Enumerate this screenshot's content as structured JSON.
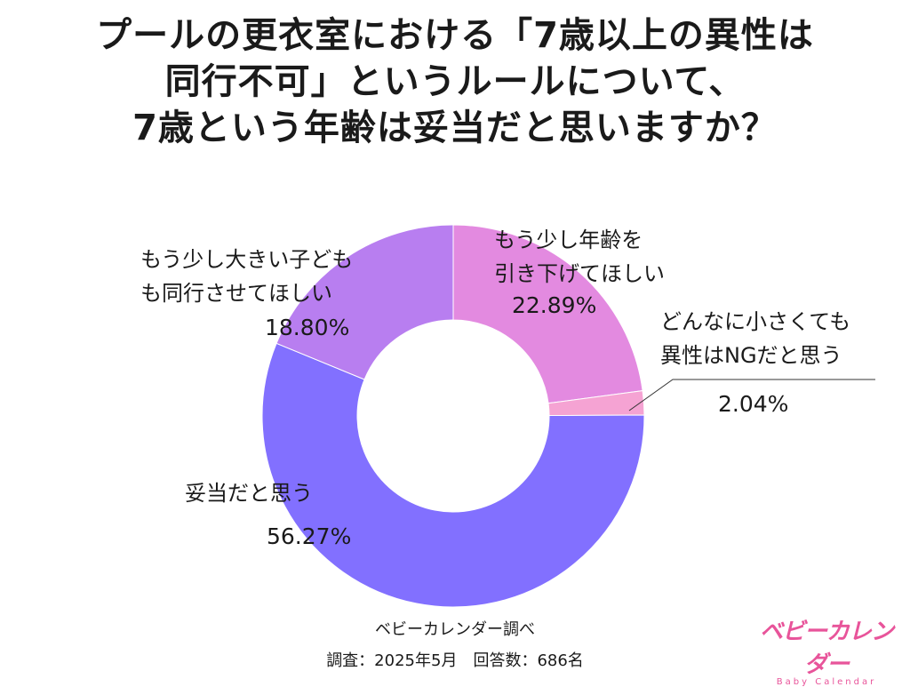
{
  "title_lines": [
    "プールの更衣室における「7歳以上の異性は",
    "同行不可」というルールについて、",
    "7歳という年齢は妥当だと思いますか？"
  ],
  "chart_data": {
    "type": "pie",
    "donut": true,
    "slices": [
      {
        "label_lines": [
          "もう少し年齢を",
          "引き下げてほしい"
        ],
        "value": 22.89,
        "value_label": "22.89%",
        "color": "#e38ae0"
      },
      {
        "label_lines": [
          "どんなに小さくても",
          "異性はNGだと思う"
        ],
        "value": 2.04,
        "value_label": "2.04%",
        "color": "#f5a3d3"
      },
      {
        "label_lines": [
          "妥当だと思う"
        ],
        "value": 56.27,
        "value_label": "56.27%",
        "color": "#8270ff"
      },
      {
        "label_lines": [
          "もう少し大きい子ども",
          "も同行させてほしい"
        ],
        "value": 18.8,
        "value_label": "18.80%",
        "color": "#b87ef0"
      }
    ]
  },
  "footer": {
    "source": "ベビーカレンダー調べ",
    "survey": "調査：2025年5月　回答数：686名"
  },
  "logo": {
    "main": "ベビーカレンダー",
    "sub": "Baby Calendar"
  }
}
